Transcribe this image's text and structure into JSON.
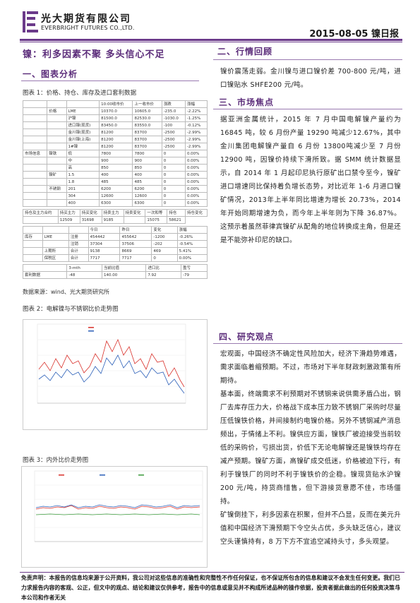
{
  "header": {
    "company_cn": "光大期货有限公司",
    "company_en": "EVERBRIGHT FUTURES CO.,LTD.",
    "report_date": "2015-08-05 镍日报",
    "logo_icon": "everbright-logo-icon"
  },
  "main_title": "镍：利多因素不聚  多头信心不足",
  "left": {
    "section1": "一、图表分析",
    "fig1_caption": "图表 1：价格、持仓、库存及进口套利数据",
    "table": {
      "rows": [
        [
          "",
          "",
          "",
          "10:00收市价",
          "上一收市价",
          "涨跌",
          "涨幅"
        ],
        [
          "",
          "价格",
          "LME",
          "10370.0",
          "10605.0",
          "-235.0",
          "-2.22%"
        ],
        [
          "",
          "",
          "沪镍",
          "81500.0",
          "82530.0",
          "-1030.0",
          "-1.25%"
        ],
        [
          "",
          "",
          "进口镍(现货)",
          "83450.0",
          "83550.0",
          "-100",
          "-0.12%"
        ],
        [
          "",
          "",
          "金川镍(现货)",
          "81200",
          "83700",
          "-2500",
          "-2.99%"
        ],
        [
          "",
          "",
          "金川镍(上海)",
          "81200",
          "83700",
          "-2500",
          "-2.99%"
        ],
        [
          "",
          "",
          "1#镍",
          "81200",
          "83700",
          "-2500",
          "-2.99%"
        ],
        [
          "市场信息",
          "镍铁",
          "低",
          "7800",
          "7800",
          "0",
          "0.00%"
        ],
        [
          "",
          "",
          "中",
          "900",
          "900",
          "0",
          "0.00%"
        ],
        [
          "",
          "",
          "高",
          "850",
          "850",
          "0",
          "0.00%"
        ],
        [
          "",
          "镍矿",
          "1.5",
          "400",
          "400",
          "0",
          "0.00%"
        ],
        [
          "",
          "",
          "1.8",
          "485",
          "485",
          "0",
          "0.00%"
        ],
        [
          "",
          "不锈钢",
          "201",
          "6200",
          "6200",
          "0",
          "0.00%"
        ],
        [
          "",
          "",
          "304",
          "12600",
          "12600",
          "0",
          "0.00%"
        ],
        [
          "",
          "",
          "400",
          "6300",
          "6300",
          "0",
          "0.00%"
        ]
      ],
      "stock_row": [
        "持仓及主力合约",
        "持买主力",
        "持买变化",
        "持卖主力",
        "持卖变化",
        "一次和等",
        "持仓",
        "持仓变化"
      ],
      "stock_vals": [
        "",
        "12509",
        "31698",
        "9185",
        "",
        "15075",
        "58621"
      ],
      "inv_rows": [
        [
          "",
          "",
          "",
          "今日",
          "昨日",
          "变化",
          "涨幅"
        ],
        [
          "库存",
          "LME",
          "注册",
          "454442",
          "455642",
          "-1200",
          "-0.26%"
        ],
        [
          "",
          "",
          "注销",
          "37304",
          "37506",
          "-202",
          "-0.54%"
        ],
        [
          "",
          "上期所",
          "合计",
          "9138",
          "8669",
          "469",
          "5.41%"
        ],
        [
          "",
          "保税区",
          "合计",
          "7717",
          "7717",
          "0",
          "0.00%"
        ]
      ],
      "arb_rows": [
        [
          "",
          "3-mth",
          "当前比值",
          "进口比",
          "盈亏"
        ],
        [
          "",
          "-48",
          "140.00",
          "7.92",
          "-79"
        ]
      ],
      "arb_label": "套利数据"
    },
    "source": "数据来源：wind、光大期货研究所",
    "fig2_caption": "图表 2：电解镍与不锈钢比价走势图",
    "fig3_caption": "图表 3：内外比价走势图"
  },
  "right": {
    "section2": "二、行情回顾",
    "p2": "镍价震荡走弱。金川镍与进口镍价差 700-800 元/吨，进口镍贴水 SHFE200 元/吨。",
    "section3": "三、市场焦点",
    "p3": "据亚洲金属统计，2015 年 7 月中国电解镍产量约为 16845 吨，较 6 月份产量 19290 吨减少12.67%，其中金川集团电解镍产量自 6 月份 13800吨减少至 7 月份 12900 吨，因镍价持续下滑所致。据 SMM 统计数据显示，自 2014 年 1 月起印尼执行原矿出口禁令至今，镍矿进口增速同比保持着负增长态势，对比近年 1-6 月进口镍矿情况，2013年上半年同比增速为增长 20.73%，2014 年开始同期增速为负，而今年上半年则为下降 36.87%。这预示着虽然菲律宾镍矿从配角的地位转换成主角，但是还是不能弥补印尼的缺口。",
    "section4": "四、研究观点",
    "p4": "宏观面，中国经济不确定性风险加大，经济下滑趋势难遇，需求面临着缩预期。不过，市场对下半年财政刺激政策有所期待。",
    "p5": "基本面，终端需求不利预期对不锈钢来说供需矛盾凸出，钢厂去库存压力大，价格战下成本压力致不锈钢厂采购时尽量压低镍铁价格，并间接制约电镍价格。另外不锈钢减产消息频出，于情绪上不利。镍供应方面，镍铁厂被迫接受当前较低的采购价，亏损出货，价低下无论电解镍还是镍铁均存在减产预期。镍矿方面，高镍矿成交低迷，价格被迫下行，有利于镍铁厂的同时不利于镍铁价的企稳。镍现货贴水沪镍 200 元/吨，持货商惜售，但下游接货意愿不佳，市场僵持。",
    "p6": "矿镍倒挂下，利多因素在积聚，但并不凸显，反而在美元升值和中国经济下滑预期下令空头占优，多头缺乏信心，建议空头谨慎持有，8 万下方不宜追空减持头寸，多头观望。"
  },
  "footer": {
    "disclaimer": "免责声明：本报告的信息均来源于公开资料，我公司对这些信息的准确性和完整性不作任何保证，也不保证所包含的信息和建议不会发生任何变更。我们已力求报告内容的客观、公正，但文中的观点、结论和建议仅供参考，报告中的信息或意见并不构成所述品种的操作依据，投资者据此做出的任何投资决策与本公司和作者无关",
    "page": "1"
  },
  "colors": {
    "accent": "#5b2c7a",
    "red": "#d9302a",
    "blue": "#2b5fb8",
    "green": "#3a9a3a"
  }
}
